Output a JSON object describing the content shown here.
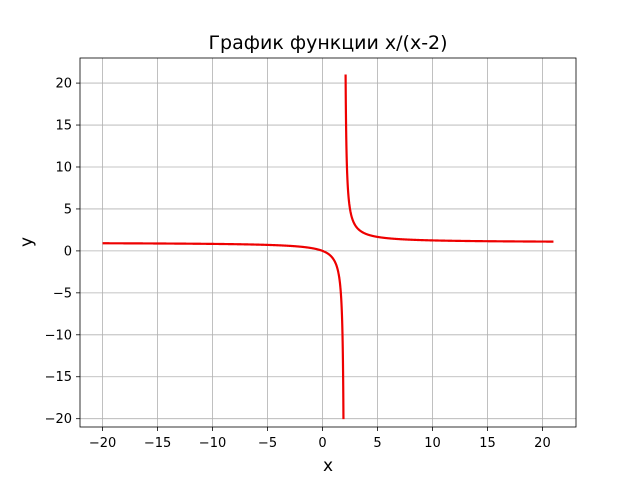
{
  "chart_data": {
    "type": "line",
    "title": "График функции x/(x-2)",
    "xlabel": "x",
    "ylabel": "y",
    "xlim": [
      -22.05,
      23.05
    ],
    "ylim": [
      -20.99,
      22.99
    ],
    "grid": true,
    "x_ticks": [
      -20,
      -15,
      -10,
      -5,
      0,
      5,
      10,
      15,
      20
    ],
    "y_ticks": [
      -20,
      -15,
      -10,
      -5,
      0,
      5,
      10,
      15,
      20
    ],
    "x_tick_labels": [
      "−20",
      "−15",
      "−10",
      "−5",
      "0",
      "5",
      "10",
      "15",
      "20"
    ],
    "y_tick_labels": [
      "−20",
      "−15",
      "−10",
      "−5",
      "0",
      "5",
      "10",
      "15",
      "20"
    ],
    "color": "#ee0000",
    "series": [
      {
        "function": "x/(x-2)",
        "segments": [
          {
            "x_start": -20,
            "x_end": 1.905,
            "y_end": -19.0
          },
          {
            "x_start": 2.0999,
            "x_end": 21,
            "y_start": 21.0
          }
        ]
      }
    ]
  }
}
